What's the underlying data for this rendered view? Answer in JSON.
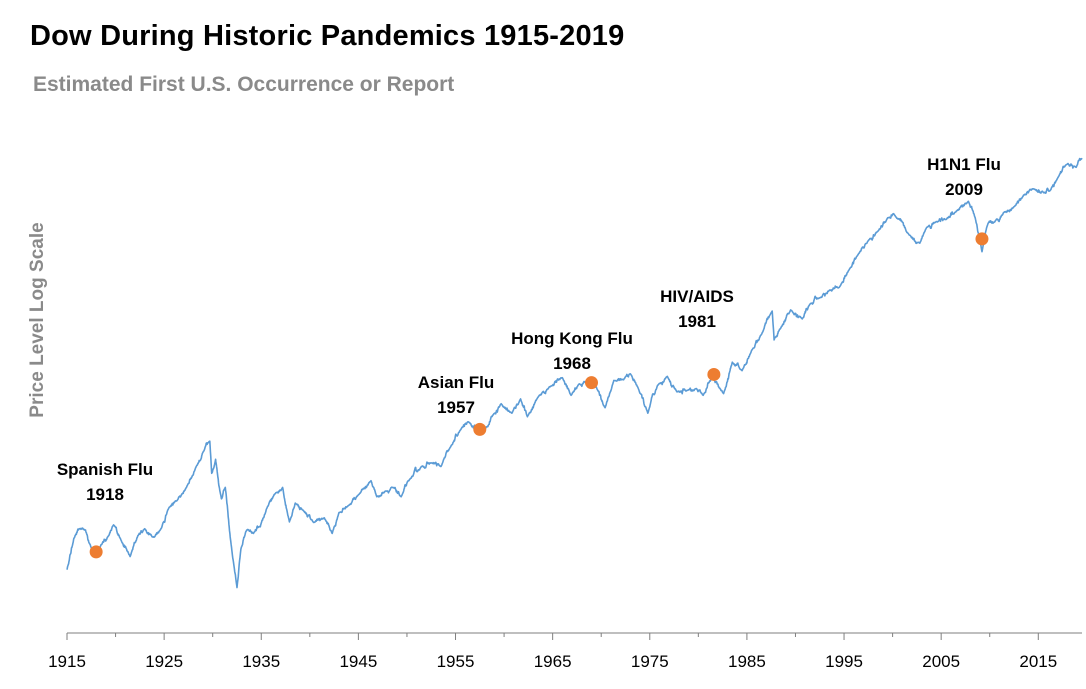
{
  "title": "Dow During Historic Pandemics 1915-2019",
  "subtitle": "Estimated First U.S. Occurrence or Report",
  "colors": {
    "line": "#5b9bd5",
    "marker": "#ed7d31",
    "axis": "#7f7f7f"
  },
  "chart_data": {
    "type": "line",
    "title": "Dow During Historic Pandemics 1915-2019",
    "subtitle": "Estimated First U.S. Occurrence or Report",
    "xlabel": "",
    "ylabel": "Price Level Log Scale",
    "yscale": "log",
    "xlim": [
      1915,
      2019.5
    ],
    "ylim": [
      30,
      40000
    ],
    "x_ticks": [
      1915,
      1925,
      1935,
      1945,
      1955,
      1965,
      1975,
      1985,
      1995,
      2005,
      2015
    ],
    "grid": false,
    "series": [
      {
        "name": "Dow",
        "points": [
          [
            1915.0,
            55
          ],
          [
            1915.7,
            88
          ],
          [
            1916.3,
            102
          ],
          [
            1916.9,
            100
          ],
          [
            1917.4,
            80
          ],
          [
            1917.9,
            67
          ],
          [
            1918.5,
            80
          ],
          [
            1919.3,
            92
          ],
          [
            1919.8,
            108
          ],
          [
            1920.5,
            88
          ],
          [
            1921.5,
            67
          ],
          [
            1922.3,
            92
          ],
          [
            1923.0,
            102
          ],
          [
            1923.8,
            90
          ],
          [
            1924.6,
            100
          ],
          [
            1925.5,
            140
          ],
          [
            1926.3,
            155
          ],
          [
            1927.3,
            190
          ],
          [
            1928.3,
            260
          ],
          [
            1929.1,
            330
          ],
          [
            1929.7,
            381
          ],
          [
            1929.9,
            235
          ],
          [
            1930.3,
            290
          ],
          [
            1930.9,
            160
          ],
          [
            1931.3,
            190
          ],
          [
            1931.8,
            90
          ],
          [
            1932.5,
            42
          ],
          [
            1932.9,
            75
          ],
          [
            1933.5,
            100
          ],
          [
            1934.2,
            95
          ],
          [
            1934.9,
            105
          ],
          [
            1935.6,
            140
          ],
          [
            1936.5,
            175
          ],
          [
            1937.2,
            190
          ],
          [
            1937.9,
            113
          ],
          [
            1938.5,
            150
          ],
          [
            1939.3,
            135
          ],
          [
            1940.4,
            112
          ],
          [
            1941.5,
            120
          ],
          [
            1942.3,
            95
          ],
          [
            1943.0,
            130
          ],
          [
            1944.0,
            145
          ],
          [
            1945.0,
            170
          ],
          [
            1946.3,
            210
          ],
          [
            1946.9,
            165
          ],
          [
            1947.8,
            180
          ],
          [
            1948.5,
            190
          ],
          [
            1949.4,
            165
          ],
          [
            1950.3,
            215
          ],
          [
            1951.5,
            260
          ],
          [
            1952.5,
            275
          ],
          [
            1953.5,
            260
          ],
          [
            1954.5,
            350
          ],
          [
            1955.5,
            450
          ],
          [
            1956.3,
            510
          ],
          [
            1957.5,
            460
          ],
          [
            1958.0,
            450
          ],
          [
            1958.9,
            570
          ],
          [
            1959.7,
            670
          ],
          [
            1960.8,
            580
          ],
          [
            1961.7,
            720
          ],
          [
            1962.4,
            550
          ],
          [
            1963.5,
            740
          ],
          [
            1964.8,
            870
          ],
          [
            1966.0,
            990
          ],
          [
            1966.9,
            760
          ],
          [
            1967.7,
            900
          ],
          [
            1968.5,
            930
          ],
          [
            1969.5,
            860
          ],
          [
            1970.4,
            630
          ],
          [
            1971.3,
            950
          ],
          [
            1972.3,
            960
          ],
          [
            1973.0,
            1050
          ],
          [
            1973.8,
            850
          ],
          [
            1974.8,
            580
          ],
          [
            1975.8,
            880
          ],
          [
            1976.8,
            1010
          ],
          [
            1977.8,
            800
          ],
          [
            1978.9,
            820
          ],
          [
            1979.8,
            840
          ],
          [
            1980.5,
            760
          ],
          [
            1981.4,
            1000
          ],
          [
            1982.6,
            780
          ],
          [
            1983.5,
            1250
          ],
          [
            1984.5,
            1100
          ],
          [
            1985.5,
            1500
          ],
          [
            1986.5,
            1900
          ],
          [
            1987.6,
            2700
          ],
          [
            1987.8,
            1750
          ],
          [
            1988.5,
            2100
          ],
          [
            1989.5,
            2750
          ],
          [
            1990.7,
            2400
          ],
          [
            1991.5,
            3000
          ],
          [
            1992.5,
            3300
          ],
          [
            1993.5,
            3700
          ],
          [
            1994.5,
            3850
          ],
          [
            1995.5,
            5000
          ],
          [
            1996.5,
            6400
          ],
          [
            1997.5,
            7800
          ],
          [
            1998.5,
            9000
          ],
          [
            1999.5,
            11000
          ],
          [
            2000.1,
            11700
          ],
          [
            2001.7,
            8500
          ],
          [
            2002.8,
            7500
          ],
          [
            2003.5,
            9500
          ],
          [
            2004.5,
            10400
          ],
          [
            2005.5,
            10700
          ],
          [
            2006.5,
            12000
          ],
          [
            2007.8,
            14100
          ],
          [
            2008.5,
            11000
          ],
          [
            2009.2,
            6600
          ],
          [
            2009.8,
            10000
          ],
          [
            2010.5,
            10300
          ],
          [
            2011.5,
            12000
          ],
          [
            2012.5,
            13000
          ],
          [
            2013.5,
            15500
          ],
          [
            2014.5,
            17000
          ],
          [
            2015.6,
            16000
          ],
          [
            2016.2,
            16500
          ],
          [
            2017.0,
            20000
          ],
          [
            2017.9,
            24500
          ],
          [
            2018.9,
            23500
          ],
          [
            2019.5,
            27000
          ]
        ]
      }
    ],
    "annotations": [
      {
        "name": "Spanish Flu",
        "year": "1918",
        "x": 1918.0,
        "y": 72
      },
      {
        "name": "Asian Flu",
        "year": "1957",
        "x": 1957.5,
        "y": 455
      },
      {
        "name": "Hong Kong Flu",
        "year": "1968",
        "x": 1969.0,
        "y": 920
      },
      {
        "name": "HIV/AIDS",
        "year": "1981",
        "x": 1981.6,
        "y": 1040
      },
      {
        "name": "H1N1 Flu",
        "year": "2009",
        "x": 2009.2,
        "y": 8000
      }
    ]
  }
}
